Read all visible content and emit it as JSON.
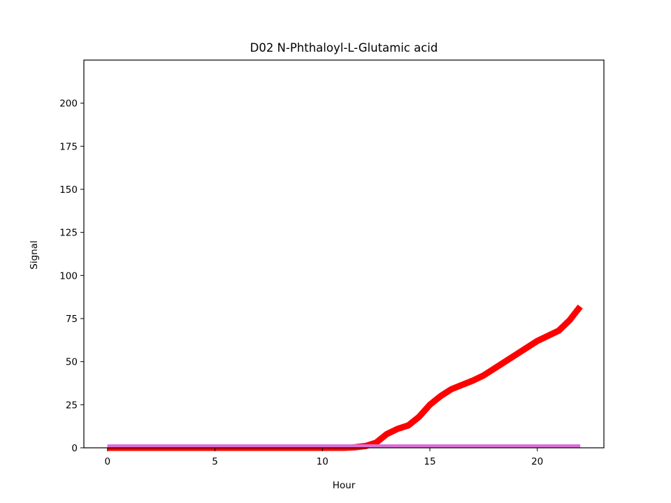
{
  "chart_data": {
    "type": "line",
    "title": "D02 N-Phthaloyl-L-Glutamic acid",
    "xlabel": "Hour",
    "ylabel": "Signal",
    "xlim": [
      -1.1,
      23.1
    ],
    "ylim": [
      0,
      225
    ],
    "xticks": [
      0,
      5,
      10,
      15,
      20
    ],
    "yticks": [
      0,
      25,
      50,
      75,
      100,
      125,
      150,
      175,
      200
    ],
    "grid": false,
    "legend": "none",
    "series": [
      {
        "color": "#ff0000",
        "x": [
          0,
          1,
          2,
          3,
          4,
          5,
          6,
          7,
          8,
          9,
          10,
          11,
          11.5,
          12,
          12.5,
          13,
          13.5,
          14,
          14.5,
          15,
          15.5,
          16,
          16.5,
          17,
          17.5,
          18,
          18.5,
          19,
          19.5,
          20,
          20.5,
          21,
          21.5,
          22
        ],
        "y": [
          0,
          0,
          0,
          0,
          0,
          0,
          0,
          0,
          0,
          0,
          0,
          0,
          0.3,
          1,
          3,
          8,
          11,
          13,
          18,
          25,
          30,
          34,
          36.5,
          39,
          42,
          46,
          50,
          54,
          58,
          62,
          65,
          68,
          74,
          82
        ]
      },
      {
        "color": "#da70d6",
        "x": [
          0,
          22
        ],
        "y": [
          1,
          1
        ]
      }
    ]
  }
}
